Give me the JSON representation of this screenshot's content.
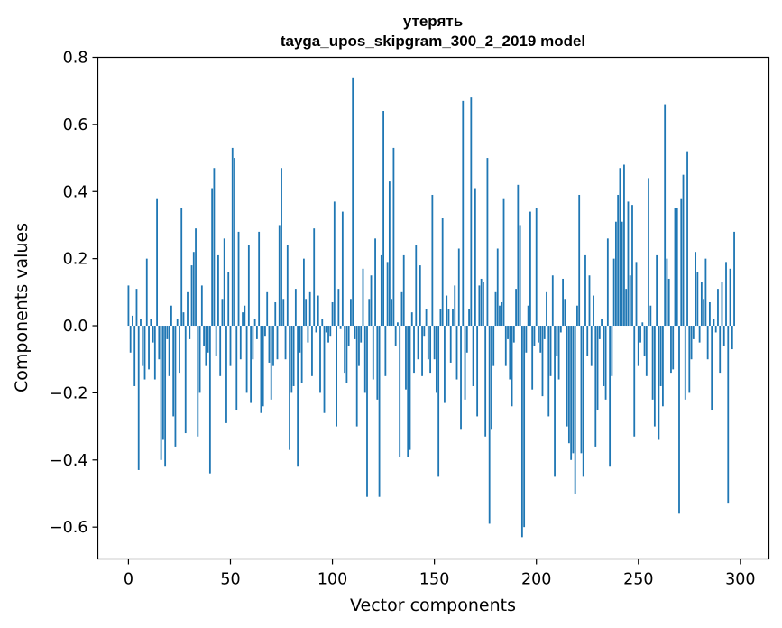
{
  "chart_data": {
    "type": "bar",
    "title": "утерять",
    "subtitle": "tayga_upos_skipgram_300_2_2019 model",
    "xlabel": "Vector components",
    "ylabel": "Components values",
    "xlim": [
      -15,
      314
    ],
    "ylim": [
      -0.695,
      0.8
    ],
    "xticks": [
      0,
      50,
      100,
      150,
      200,
      250,
      300
    ],
    "xtick_labels": [
      "0",
      "50",
      "100",
      "150",
      "200",
      "250",
      "300"
    ],
    "yticks": [
      -0.6,
      -0.4,
      -0.2,
      0.0,
      0.2,
      0.4,
      0.6,
      0.8
    ],
    "ytick_labels": [
      "−0.6",
      "−0.4",
      "−0.2",
      "0.0",
      "0.2",
      "0.4",
      "0.6",
      "0.8"
    ],
    "bar_color": "#1f77b4",
    "values": [
      0.12,
      -0.08,
      0.03,
      -0.18,
      0.11,
      -0.43,
      0.02,
      -0.12,
      -0.16,
      0.2,
      -0.13,
      0.02,
      -0.05,
      -0.16,
      0.38,
      -0.1,
      -0.4,
      -0.34,
      -0.42,
      -0.04,
      -0.15,
      0.06,
      -0.27,
      -0.36,
      0.02,
      -0.14,
      0.35,
      0.04,
      -0.32,
      0.1,
      -0.04,
      0.18,
      0.22,
      0.29,
      -0.33,
      -0.2,
      0.12,
      -0.06,
      -0.12,
      -0.08,
      -0.44,
      0.41,
      0.47,
      -0.09,
      0.21,
      -0.15,
      0.08,
      0.26,
      -0.29,
      0.16,
      -0.12,
      0.53,
      0.5,
      -0.25,
      0.28,
      -0.1,
      0.04,
      0.06,
      -0.2,
      0.24,
      -0.23,
      -0.1,
      0.02,
      -0.04,
      0.28,
      -0.26,
      -0.24,
      -0.03,
      0.1,
      -0.11,
      -0.22,
      -0.12,
      0.07,
      -0.1,
      0.3,
      0.47,
      0.08,
      -0.1,
      0.24,
      -0.37,
      -0.2,
      -0.18,
      0.11,
      -0.42,
      -0.08,
      -0.17,
      0.2,
      0.08,
      -0.05,
      0.1,
      -0.15,
      0.29,
      -0.02,
      0.09,
      -0.2,
      0.02,
      -0.26,
      -0.02,
      -0.05,
      -0.03,
      0.07,
      0.37,
      -0.3,
      0.11,
      -0.01,
      0.34,
      -0.14,
      -0.17,
      -0.06,
      0.08,
      0.74,
      -0.04,
      -0.3,
      -0.12,
      -0.05,
      0.17,
      -0.2,
      -0.51,
      0.08,
      0.15,
      -0.16,
      0.26,
      -0.22,
      -0.51,
      0.21,
      0.64,
      -0.15,
      0.19,
      0.43,
      0.08,
      0.53,
      -0.06,
      0.01,
      -0.39,
      0.1,
      0.21,
      -0.19,
      -0.39,
      -0.37,
      0.04,
      -0.14,
      0.24,
      -0.1,
      0.18,
      -0.15,
      -0.03,
      0.05,
      -0.1,
      -0.14,
      0.39,
      -0.1,
      -0.2,
      -0.45,
      0.05,
      0.32,
      -0.23,
      0.09,
      0.05,
      -0.11,
      0.05,
      0.12,
      -0.16,
      0.23,
      -0.31,
      0.67,
      -0.22,
      -0.08,
      0.05,
      0.68,
      -0.18,
      0.41,
      -0.27,
      0.12,
      0.14,
      0.13,
      -0.33,
      0.5,
      -0.59,
      -0.31,
      -0.12,
      0.1,
      0.23,
      0.06,
      0.07,
      0.38,
      -0.12,
      -0.04,
      -0.16,
      -0.24,
      -0.05,
      0.11,
      0.42,
      0.3,
      -0.63,
      -0.6,
      -0.08,
      0.06,
      0.34,
      -0.19,
      -0.06,
      0.35,
      -0.05,
      -0.08,
      -0.21,
      -0.04,
      0.1,
      -0.27,
      -0.15,
      0.15,
      -0.45,
      -0.09,
      -0.16,
      -0.02,
      0.14,
      0.08,
      -0.3,
      -0.35,
      -0.4,
      -0.38,
      -0.5,
      0.06,
      0.39,
      -0.38,
      -0.45,
      0.21,
      -0.09,
      0.15,
      -0.12,
      0.09,
      -0.36,
      -0.25,
      -0.04,
      0.02,
      -0.18,
      -0.22,
      0.26,
      -0.42,
      -0.15,
      0.2,
      0.31,
      0.39,
      0.47,
      0.31,
      0.48,
      0.11,
      0.37,
      0.15,
      0.36,
      -0.33,
      0.19,
      -0.12,
      -0.05,
      0.01,
      -0.09,
      -0.15,
      0.44,
      0.06,
      -0.22,
      -0.3,
      0.21,
      -0.34,
      -0.18,
      -0.24,
      0.66,
      0.2,
      0.14,
      -0.14,
      -0.13,
      0.35,
      0.35,
      -0.56,
      0.38,
      0.45,
      -0.22,
      0.52,
      -0.2,
      -0.1,
      -0.04,
      0.22,
      0.16,
      -0.05,
      0.13,
      0.08,
      0.2,
      -0.1,
      0.07,
      -0.25,
      0.02,
      -0.02,
      0.11,
      -0.14,
      0.13,
      -0.06,
      0.19,
      -0.53,
      0.17,
      -0.07,
      0.28
    ]
  }
}
